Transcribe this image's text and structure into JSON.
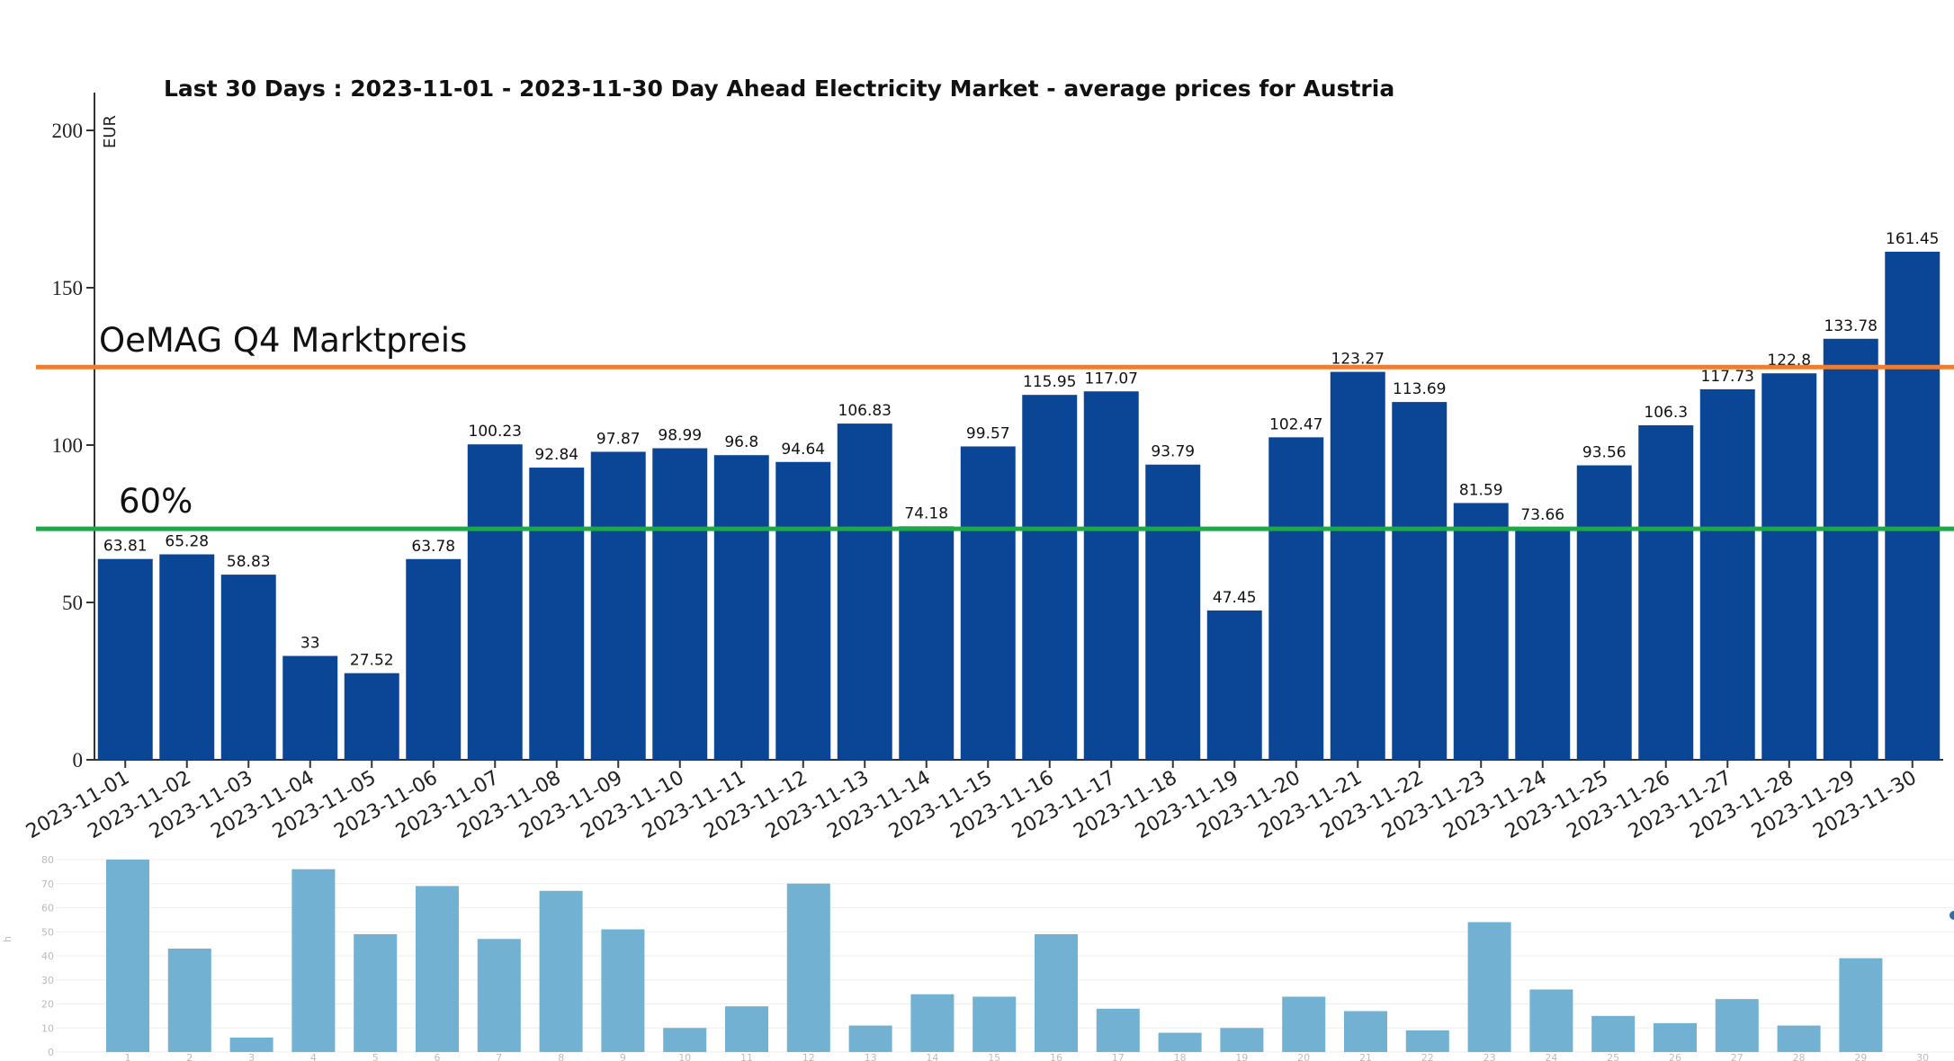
{
  "chart_data": [
    {
      "type": "bar",
      "title": "Last 30 Days : 2023-11-01 - 2023-11-30 Day Ahead Electricity Market - average prices for Austria",
      "ylabel": "EUR",
      "ylim": [
        0,
        212
      ],
      "yticks": [
        "0",
        "50",
        "100",
        "150",
        "200"
      ],
      "grid": false,
      "bar_color": "#0a4596",
      "categories": [
        "2023-11-01",
        "2023-11-02",
        "2023-11-03",
        "2023-11-04",
        "2023-11-05",
        "2023-11-06",
        "2023-11-07",
        "2023-11-08",
        "2023-11-09",
        "2023-11-10",
        "2023-11-11",
        "2023-11-12",
        "2023-11-13",
        "2023-11-14",
        "2023-11-15",
        "2023-11-16",
        "2023-11-17",
        "2023-11-18",
        "2023-11-19",
        "2023-11-20",
        "2023-11-21",
        "2023-11-22",
        "2023-11-23",
        "2023-11-24",
        "2023-11-25",
        "2023-11-26",
        "2023-11-27",
        "2023-11-28",
        "2023-11-29",
        "2023-11-30"
      ],
      "values": [
        63.81,
        65.28,
        58.83,
        33,
        27.52,
        63.78,
        100.23,
        92.84,
        97.87,
        98.99,
        96.8,
        94.64,
        106.83,
        74.18,
        99.57,
        115.95,
        117.07,
        93.79,
        47.45,
        102.47,
        123.27,
        113.69,
        81.59,
        73.66,
        93.56,
        106.3,
        117.73,
        122.8,
        133.78,
        161.45
      ],
      "value_labels": [
        "63.81",
        "65.28",
        "58.83",
        "33",
        "27.52",
        "63.78",
        "100.23",
        "92.84",
        "97.87",
        "98.99",
        "96.8",
        "94.64",
        "106.83",
        "74.18",
        "99.57",
        "115.95",
        "117.07",
        "93.79",
        "47.45",
        "102.47",
        "123.27",
        "113.69",
        "81.59",
        "73.66",
        "93.56",
        "106.3",
        "117.73",
        "122.8",
        "133.78",
        "161.45"
      ],
      "reference_lines": [
        {
          "label": "OeMAG Q4 Marktpreis",
          "value": 124.8,
          "color": "#ed7d31"
        },
        {
          "label": "60%",
          "value": 73.4,
          "color": "#1ea84a"
        }
      ]
    },
    {
      "type": "bar",
      "ylim": [
        0,
        80
      ],
      "yticks": [
        "0",
        "10",
        "20",
        "30",
        "40",
        "50",
        "60",
        "70",
        "80"
      ],
      "ylabel": "h",
      "grid": true,
      "bar_color": "#72b1d1",
      "categories": [
        "1",
        "2",
        "3",
        "4",
        "5",
        "6",
        "7",
        "8",
        "9",
        "10",
        "11",
        "12",
        "13",
        "14",
        "15",
        "16",
        "17",
        "18",
        "19",
        "20",
        "21",
        "22",
        "23",
        "24",
        "25",
        "26",
        "27",
        "28",
        "29",
        "30"
      ],
      "values": [
        80,
        43,
        6,
        76,
        49,
        69,
        47,
        67,
        51,
        10,
        19,
        70,
        11,
        24,
        23,
        49,
        18,
        8,
        10,
        23,
        17,
        9,
        54,
        26,
        15,
        12,
        22,
        11,
        39,
        0
      ]
    }
  ]
}
